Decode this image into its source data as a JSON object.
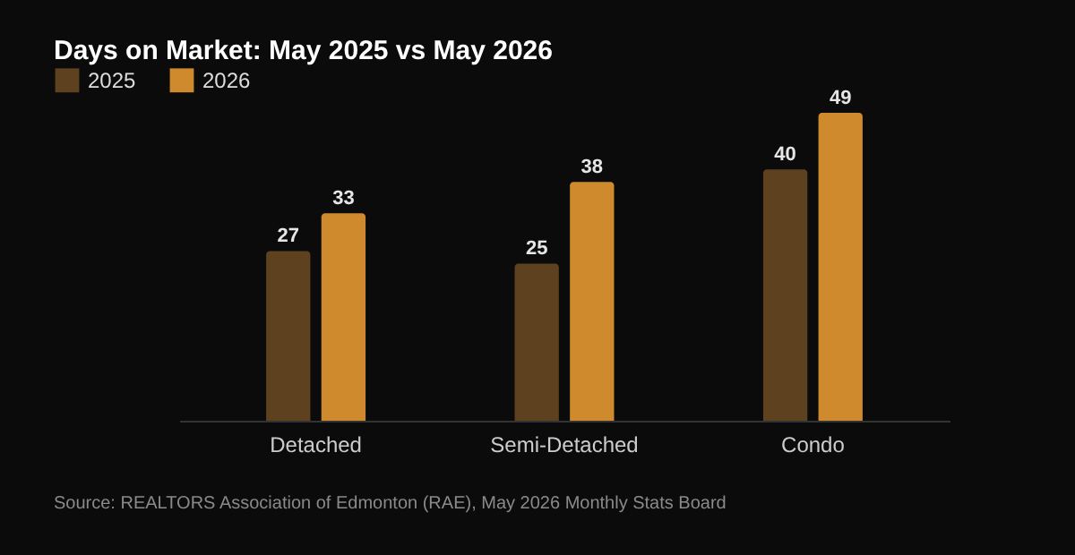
{
  "chart_data": {
    "type": "bar",
    "title": "Days on Market: May 2025 vs May 2026",
    "categories": [
      "Detached",
      "Semi-Detached",
      "Condo"
    ],
    "series": [
      {
        "name": "2025",
        "color": "#5e4220",
        "values": [
          27,
          25,
          40
        ]
      },
      {
        "name": "2026",
        "color": "#d08a2e",
        "values": [
          33,
          38,
          49
        ]
      }
    ],
    "data_labels": true,
    "legend": "top left",
    "grid": false,
    "annotations": [
      "Source: REALTORS Association of Edmonton (RAE), May 2026 Monthly Stats Board"
    ]
  }
}
